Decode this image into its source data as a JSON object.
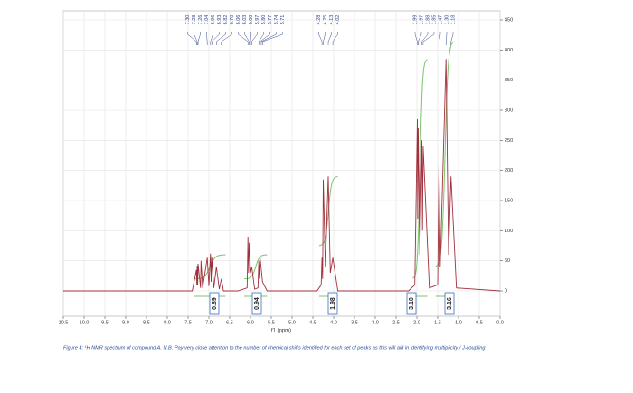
{
  "chart_data": {
    "type": "line",
    "x_label": "f1 (ppm)",
    "caption": "Figure 4: ¹H NMR spectrum of compound A. N.B. Pay very close attention to the number of chemical shifts identified for each set of peaks as this will aid in identifying multiplicity / J-coupling",
    "xlim": [
      10.5,
      0
    ],
    "ylim": [
      -42,
      465
    ],
    "grid": true,
    "xticks": [
      10.5,
      {
        "value": 10,
        "label": "10.0"
      },
      9.5,
      {
        "value": 9,
        "label": "9.0"
      },
      8.5,
      {
        "value": 8,
        "label": "8.0"
      },
      7.5,
      {
        "value": 7,
        "label": "7.0"
      },
      6.5,
      {
        "value": 6,
        "label": "6.0"
      },
      5.5,
      {
        "value": 5,
        "label": "5.0"
      },
      4.5,
      {
        "value": 4,
        "label": "4.0"
      },
      3.5,
      {
        "value": 3,
        "label": "3.0"
      },
      2.5,
      {
        "value": 2,
        "label": "2.0"
      },
      1.5,
      {
        "value": 1,
        "label": "1.0"
      },
      0.5,
      {
        "value": 0,
        "label": "0.0"
      }
    ],
    "yticks": [
      0,
      50,
      100,
      150,
      200,
      250,
      300,
      350,
      400,
      450
    ],
    "x": [
      10.5,
      7.4,
      7.3,
      7.29,
      7.28,
      7.27,
      7.26,
      7.2,
      7.19,
      7.15,
      7.04,
      7.0,
      6.96,
      6.945,
      6.93,
      6.88,
      6.82,
      6.75,
      6.7,
      6.65,
      6.3,
      6.08,
      6.06,
      6.045,
      6.03,
      6.0,
      5.97,
      5.9,
      5.82,
      5.8,
      5.785,
      5.77,
      5.74,
      5.71,
      5.6,
      4.4,
      4.3,
      4.28,
      4.265,
      4.25,
      4.2,
      4.13,
      4.08,
      4.02,
      3.9,
      2.2,
      2.05,
      1.99,
      1.98,
      1.97,
      1.93,
      1.88,
      1.865,
      1.85,
      1.7,
      1.5,
      1.47,
      1.44,
      1.3,
      1.24,
      1.18,
      1.05,
      0
    ],
    "series": [
      {
        "name": "spectrum",
        "color": "#a0303c",
        "values": [
          0,
          0,
          35,
          10,
          42,
          10,
          45,
          5,
          50,
          5,
          55,
          8,
          62,
          15,
          55,
          5,
          40,
          3,
          20,
          0,
          0,
          5,
          90,
          30,
          80,
          30,
          40,
          3,
          5,
          50,
          20,
          55,
          35,
          15,
          0,
          0,
          10,
          55,
          20,
          185,
          40,
          190,
          30,
          55,
          0,
          0,
          10,
          285,
          120,
          270,
          60,
          250,
          100,
          240,
          5,
          10,
          210,
          40,
          385,
          60,
          190,
          5,
          0
        ]
      }
    ],
    "peak_labels": [
      [
        {
          "value": 7.3,
          "label": "7.30"
        },
        {
          "value": 7.28,
          "label": "7.28"
        },
        {
          "value": 7.26,
          "label": "7.26"
        },
        {
          "value": 7.04,
          "label": "7.04"
        },
        {
          "value": 6.96,
          "label": "6.96"
        },
        {
          "value": 6.93,
          "label": "6.93"
        },
        {
          "value": 6.82,
          "label": "6.82"
        },
        {
          "value": 6.7,
          "label": "6.70"
        },
        {
          "value": 6.06,
          "label": "6.06"
        },
        {
          "value": 6.03,
          "label": "6.03"
        },
        {
          "value": 6,
          "label": "6.00"
        },
        {
          "value": 5.97,
          "label": "5.97"
        },
        {
          "value": 5.8,
          "label": "5.80"
        },
        {
          "value": 5.77,
          "label": "5.77"
        },
        {
          "value": 5.74,
          "label": "5.74"
        },
        {
          "value": 5.71,
          "label": "5.71"
        }
      ],
      [
        {
          "value": 4.28,
          "label": "4.28"
        },
        {
          "value": 4.25,
          "label": "4.25"
        },
        {
          "value": 4.13,
          "label": "4.13"
        },
        {
          "value": 4.02,
          "label": "4.02"
        }
      ],
      [
        {
          "value": 1.99,
          "label": "1.99"
        },
        {
          "value": 1.97,
          "label": "1.97"
        },
        {
          "value": 1.88,
          "label": "1.88"
        },
        {
          "value": 1.85,
          "label": "1.85"
        },
        {
          "value": 1.47,
          "label": "1.47"
        },
        {
          "value": 1.3,
          "label": "1.30"
        },
        {
          "value": 1.18,
          "label": "1.18"
        }
      ]
    ],
    "integrals": [
      "0.89",
      "0.94",
      "1.98",
      "3.10",
      "3.16"
    ]
  }
}
